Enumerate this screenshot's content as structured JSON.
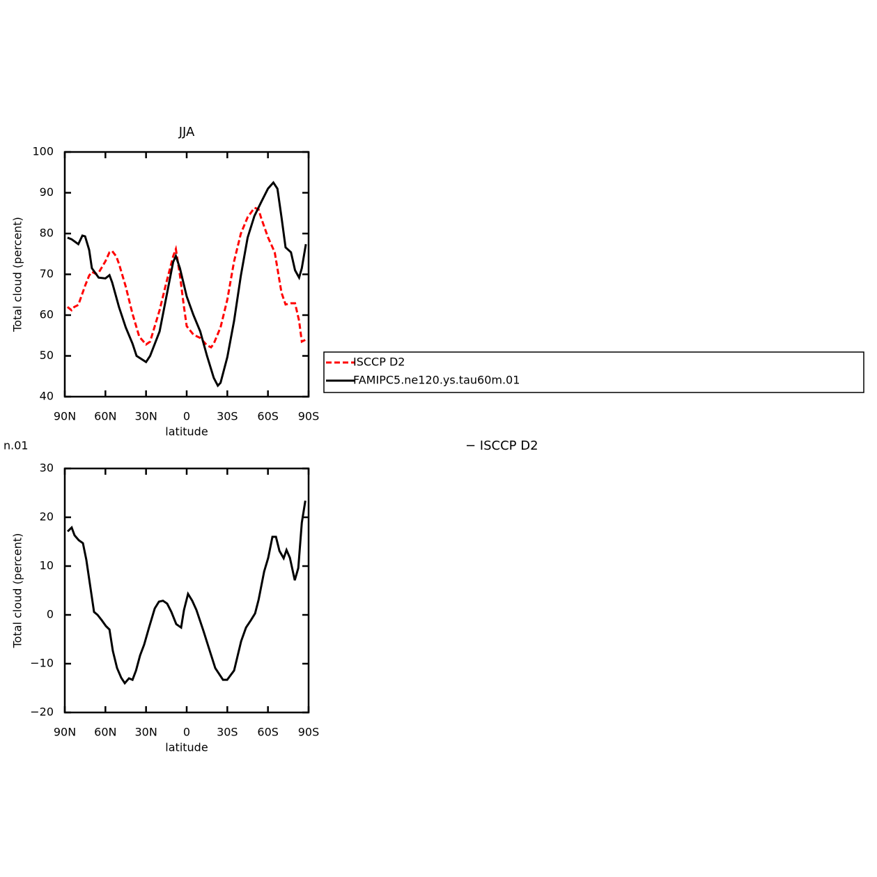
{
  "chart_data": [
    {
      "type": "line",
      "title": "JJA",
      "x_label": "latitude",
      "y_label": "Total cloud (percent)",
      "xlim": [
        90,
        -90
      ],
      "xticks": [
        {
          "value": 90,
          "label": "90N"
        },
        {
          "value": 60,
          "label": "60N"
        },
        {
          "value": 30,
          "label": "30N"
        },
        0,
        {
          "value": -30,
          "label": "30S"
        },
        {
          "value": -60,
          "label": "60S"
        },
        {
          "value": -90,
          "label": "90S"
        }
      ],
      "ylim": [
        40,
        100
      ],
      "yticks": [
        40,
        50,
        60,
        70,
        80,
        90,
        100
      ],
      "series": [
        {
          "name": "ISCCP D2",
          "color": "#ff0000",
          "dash": true,
          "x": [
            88,
            85,
            83,
            80,
            75,
            72,
            70,
            67,
            65,
            60,
            57,
            55,
            52,
            50,
            45,
            40,
            35,
            30,
            27,
            20,
            15,
            10,
            8,
            5,
            2,
            0,
            -5,
            -10,
            -15,
            -18,
            -20,
            -25,
            -30,
            -35,
            -40,
            -45,
            -50,
            -53,
            -55,
            -60,
            -65,
            -70,
            -73,
            -77,
            -80,
            -83,
            -85,
            -88
          ],
          "values": [
            62,
            61.2,
            62,
            62.5,
            67.2,
            69.7,
            70.6,
            70.1,
            70.4,
            73.2,
            75.4,
            75.7,
            74.4,
            72.6,
            67,
            60.3,
            54.7,
            52.8,
            53.5,
            61.2,
            68,
            74.4,
            76.2,
            69.8,
            62,
            57.3,
            55.2,
            54.4,
            52.6,
            52.1,
            53,
            57,
            63.8,
            73.2,
            80,
            84,
            86.3,
            86,
            83.8,
            79.1,
            75.4,
            65.5,
            62.6,
            62.9,
            62.9,
            58.6,
            53.5,
            54
          ]
        },
        {
          "name": "FAMIPC5.ne120.ys.tau60m.01",
          "color": "#000000",
          "dash": false,
          "x": [
            88,
            85,
            80,
            77,
            75,
            72,
            70,
            65,
            60,
            57,
            55,
            50,
            45,
            40,
            37,
            30,
            27,
            20,
            10,
            8,
            5,
            0,
            -5,
            -10,
            -15,
            -20,
            -23,
            -25,
            -30,
            -35,
            -40,
            -45,
            -50,
            -55,
            -60,
            -64,
            -67,
            -70,
            -73,
            -77,
            -80,
            -83,
            -85,
            -88
          ],
          "values": [
            79,
            78.6,
            77.4,
            79.5,
            79.3,
            76,
            71.5,
            69.2,
            69,
            69.8,
            68,
            62,
            57,
            53,
            50,
            48.5,
            50,
            56,
            73,
            74.5,
            71.5,
            64.6,
            60,
            56,
            50,
            44.6,
            42.7,
            43.4,
            49.7,
            58.6,
            69.7,
            79,
            84.3,
            87.7,
            91,
            92.5,
            91,
            84,
            76.6,
            75.4,
            71,
            69.2,
            71.5,
            77.4
          ]
        }
      ]
    },
    {
      "type": "line",
      "annotations": [
        "n.01",
        "− ISCCP D2"
      ],
      "x_label": "latitude",
      "y_label": "Total cloud (percent)",
      "xlim": [
        90,
        -90
      ],
      "xticks": [
        {
          "value": 90,
          "label": "90N"
        },
        {
          "value": 60,
          "label": "60N"
        },
        {
          "value": 30,
          "label": "30N"
        },
        0,
        {
          "value": -30,
          "label": "30S"
        },
        {
          "value": -60,
          "label": "60S"
        },
        {
          "value": -90,
          "label": "90S"
        }
      ],
      "ylim": [
        -20,
        30
      ],
      "yticks": [
        {
          "value": -20,
          "label": "−20"
        },
        {
          "value": -10,
          "label": "−10"
        },
        0,
        10,
        20,
        30
      ],
      "series": [
        {
          "color": "#000000",
          "dash": false,
          "x": [
            87.9,
            84.9,
            82.8,
            79.7,
            76.6,
            74.1,
            68.4,
            65.8,
            62.7,
            59.6,
            57,
            54.5,
            51.4,
            48.3,
            45.7,
            42.6,
            40,
            37.4,
            34.4,
            31.4,
            27.8,
            23.6,
            20.5,
            17.5,
            14.4,
            11.3,
            7.7,
            4.1,
            2,
            -1,
            -4.1,
            -7.2,
            -12.4,
            -16.5,
            -21.1,
            -26.8,
            -29.9,
            -35,
            -40.2,
            -43.8,
            -47.4,
            -50.5,
            -53.1,
            -57.2,
            -60.2,
            -63.3,
            -65.9,
            -68.5,
            -71.6,
            -73.7,
            -76.2,
            -79.8,
            -82.4,
            -85,
            -87.6
          ],
          "values": [
            17.1,
            17.9,
            16.3,
            15.3,
            14.7,
            11.3,
            0.6,
            0,
            -1.1,
            -2.3,
            -3,
            -7.4,
            -10.9,
            -12.9,
            -14,
            -13,
            -13.3,
            -11.4,
            -8.3,
            -6.1,
            -2.6,
            1.3,
            2.7,
            2.9,
            2.3,
            0.6,
            -1.9,
            -2.6,
            1,
            4.3,
            2.9,
            1,
            -3.3,
            -6.9,
            -10.9,
            -13.3,
            -13.3,
            -11.4,
            -5.4,
            -2.6,
            -1.1,
            0.3,
            3.1,
            8.9,
            11.7,
            16,
            16,
            13.1,
            11.6,
            13.3,
            11.7,
            7.1,
            9.6,
            18.9,
            23.4
          ]
        }
      ]
    }
  ]
}
